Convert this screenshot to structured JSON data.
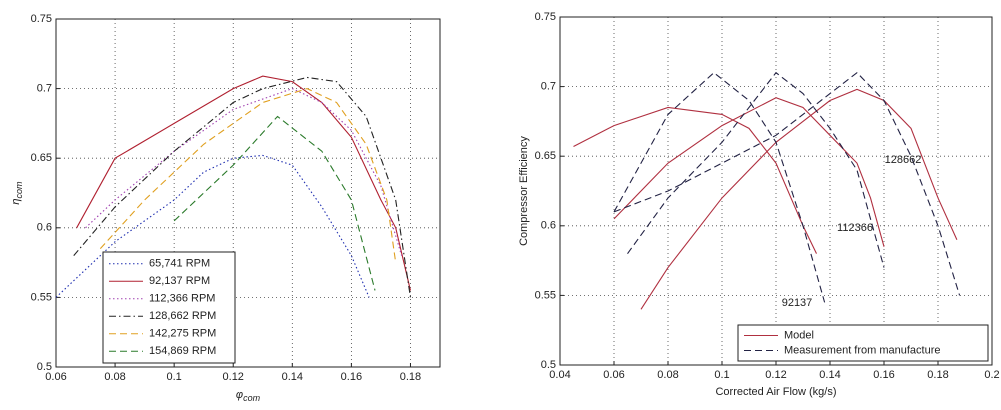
{
  "chart_data": [
    {
      "type": "line",
      "xlabel": "φ",
      "xlabel_sub": "com",
      "ylabel": "η",
      "ylabel_sub": "com",
      "xlim": [
        0.06,
        0.19
      ],
      "xticks": [
        0.06,
        0.08,
        0.1,
        0.12,
        0.14,
        0.16,
        0.18
      ],
      "ylim": [
        0.5,
        0.75
      ],
      "yticks": [
        0.5,
        0.55,
        0.6,
        0.65,
        0.7,
        0.75
      ],
      "grid": true,
      "legend": "lower left",
      "series": [
        {
          "name": "65,741 RPM",
          "color": "#1f2fb0",
          "linestyle": "dotted",
          "x": [
            0.06,
            0.08,
            0.1,
            0.11,
            0.12,
            0.13,
            0.14,
            0.15,
            0.16,
            0.166
          ],
          "values": [
            0.55,
            0.59,
            0.62,
            0.64,
            0.65,
            0.652,
            0.645,
            0.615,
            0.58,
            0.55
          ]
        },
        {
          "name": "92,137 RPM",
          "color": "#b02030",
          "linestyle": "solid",
          "x": [
            0.067,
            0.08,
            0.1,
            0.12,
            0.13,
            0.14,
            0.15,
            0.16,
            0.17,
            0.175,
            0.18
          ],
          "values": [
            0.6,
            0.65,
            0.675,
            0.7,
            0.709,
            0.705,
            0.69,
            0.665,
            0.62,
            0.6,
            0.555
          ]
        },
        {
          "name": "112,366 RPM",
          "color": "#a040b0",
          "linestyle": "dotted",
          "x": [
            0.07,
            0.08,
            0.1,
            0.12,
            0.14,
            0.15,
            0.16,
            0.17,
            0.177
          ],
          "values": [
            0.6,
            0.62,
            0.655,
            0.685,
            0.7,
            0.69,
            0.67,
            0.63,
            0.58
          ]
        },
        {
          "name": "128,662 RPM",
          "color": "#222222",
          "linestyle": "dashdot",
          "x": [
            0.066,
            0.08,
            0.1,
            0.12,
            0.13,
            0.145,
            0.155,
            0.165,
            0.175,
            0.18
          ],
          "values": [
            0.58,
            0.615,
            0.655,
            0.69,
            0.7,
            0.708,
            0.705,
            0.68,
            0.62,
            0.55
          ]
        },
        {
          "name": "142,275 RPM",
          "color": "#e0a020",
          "linestyle": "dashed",
          "x": [
            0.075,
            0.09,
            0.11,
            0.13,
            0.145,
            0.155,
            0.165,
            0.172,
            0.175
          ],
          "values": [
            0.585,
            0.62,
            0.66,
            0.69,
            0.7,
            0.69,
            0.66,
            0.62,
            0.575
          ]
        },
        {
          "name": "154,869 RPM",
          "color": "#2a7a2a",
          "linestyle": "dashed",
          "x": [
            0.1,
            0.12,
            0.135,
            0.15,
            0.16,
            0.168
          ],
          "values": [
            0.605,
            0.645,
            0.68,
            0.655,
            0.62,
            0.555
          ]
        }
      ]
    },
    {
      "type": "multiline",
      "xlabel": "Corrected Air Flow (kg/s)",
      "ylabel": "Compressor Efficiency",
      "xlim": [
        0.04,
        0.2
      ],
      "xticks": [
        0.04,
        0.06,
        0.08,
        0.1,
        0.12,
        0.14,
        0.16,
        0.18,
        0.2
      ],
      "ylim": [
        0.5,
        0.75
      ],
      "yticks": [
        0.5,
        0.55,
        0.6,
        0.65,
        0.7,
        0.75
      ],
      "grid": true,
      "legend": "lower right",
      "annotations": [
        "128662",
        "112366",
        "92137"
      ],
      "series": [
        {
          "name": "Model",
          "color": "#b03040",
          "linestyle": "solid",
          "curves": [
            {
              "x": [
                0.045,
                0.06,
                0.08,
                0.1,
                0.11,
                0.12,
                0.13,
                0.135
              ],
              "values": [
                0.657,
                0.672,
                0.685,
                0.68,
                0.67,
                0.645,
                0.6,
                0.58
              ]
            },
            {
              "x": [
                0.06,
                0.08,
                0.1,
                0.12,
                0.13,
                0.14,
                0.15,
                0.155,
                0.16
              ],
              "values": [
                0.605,
                0.645,
                0.672,
                0.692,
                0.685,
                0.665,
                0.645,
                0.62,
                0.585
              ]
            },
            {
              "x": [
                0.07,
                0.08,
                0.1,
                0.12,
                0.14,
                0.15,
                0.16,
                0.17,
                0.18,
                0.187
              ],
              "values": [
                0.54,
                0.57,
                0.62,
                0.66,
                0.69,
                0.698,
                0.69,
                0.67,
                0.62,
                0.59
              ]
            }
          ]
        },
        {
          "name": "Measurement from manufacture",
          "color": "#222244",
          "linestyle": "dashed",
          "curves": [
            {
              "x": [
                0.06,
                0.08,
                0.097,
                0.11,
                0.12,
                0.13,
                0.138
              ],
              "values": [
                0.61,
                0.68,
                0.71,
                0.69,
                0.66,
                0.6,
                0.545
              ]
            },
            {
              "x": [
                0.065,
                0.08,
                0.1,
                0.12,
                0.13,
                0.14,
                0.15,
                0.16
              ],
              "values": [
                0.58,
                0.62,
                0.66,
                0.71,
                0.695,
                0.67,
                0.64,
                0.57
              ]
            },
            {
              "x": [
                0.06,
                0.08,
                0.1,
                0.12,
                0.14,
                0.15,
                0.16,
                0.17,
                0.18,
                0.188
              ],
              "values": [
                0.61,
                0.625,
                0.645,
                0.665,
                0.695,
                0.71,
                0.69,
                0.65,
                0.6,
                0.55
              ]
            }
          ]
        }
      ]
    }
  ]
}
